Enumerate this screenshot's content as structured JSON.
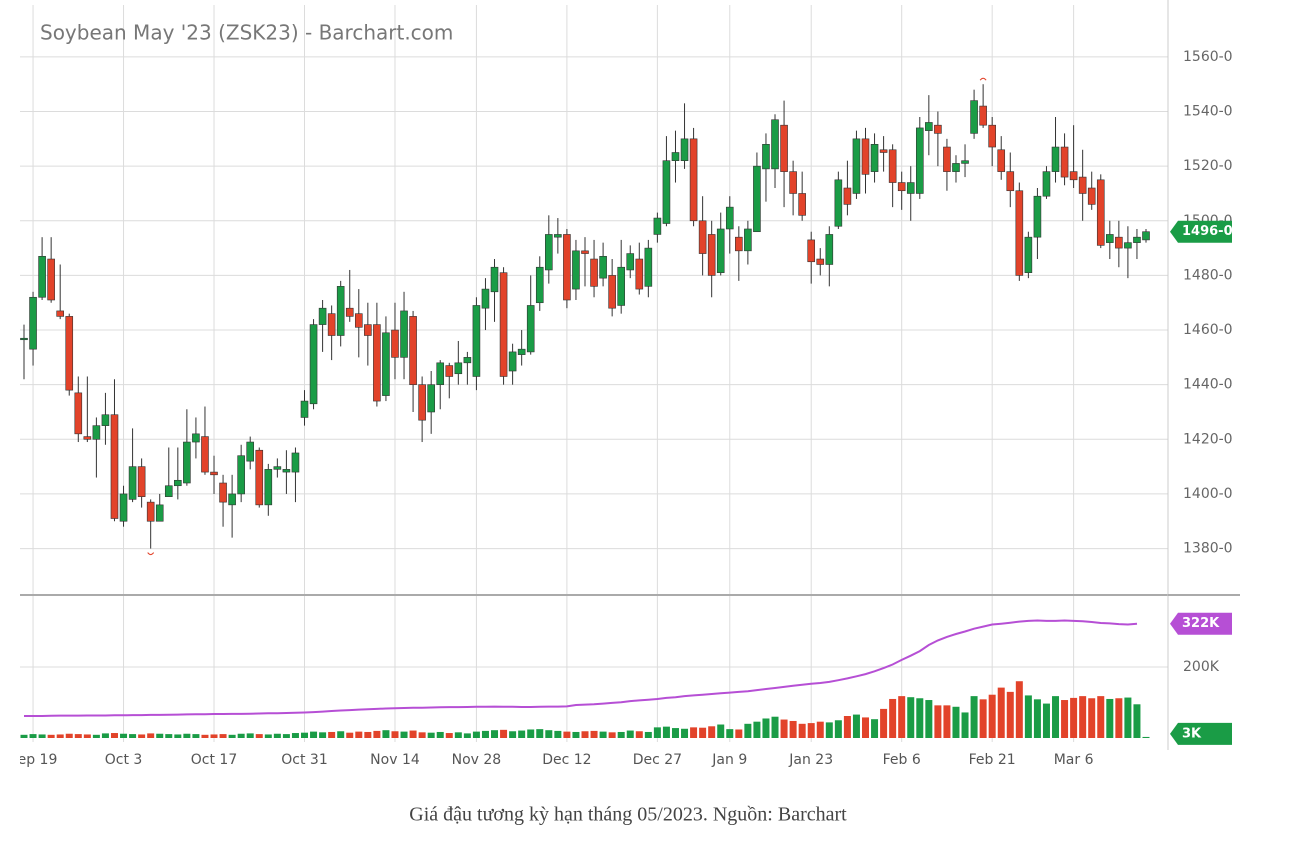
{
  "chart_data": {
    "type": "candlestick",
    "title": "Soybean May '23 (ZSK23) - Barchart.com",
    "caption": "Giá đậu tương kỳ hạn tháng 05/2023. Nguồn: Barchart",
    "colors": {
      "up": "#1a9c46",
      "down": "#e2432a",
      "open_interest": "#b64fd5"
    },
    "grid": true,
    "categories": [
      null,
      "Sep 19",
      null,
      null,
      null,
      null,
      null,
      null,
      null,
      null,
      null,
      "Oct 3",
      null,
      null,
      null,
      null,
      null,
      null,
      null,
      null,
      null,
      "Oct 17",
      null,
      null,
      null,
      null,
      null,
      null,
      null,
      null,
      null,
      "Oct 31",
      null,
      null,
      null,
      null,
      null,
      null,
      null,
      null,
      null,
      "Nov 14",
      null,
      null,
      null,
      null,
      null,
      null,
      null,
      null,
      "Nov 28",
      null,
      null,
      null,
      null,
      null,
      null,
      null,
      null,
      null,
      "Dec 12",
      null,
      null,
      null,
      null,
      null,
      null,
      null,
      null,
      null,
      "Dec 27",
      null,
      null,
      null,
      null,
      null,
      null,
      null,
      "Jan 9",
      null,
      null,
      null,
      null,
      null,
      null,
      null,
      null,
      "Jan 23",
      null,
      null,
      null,
      null,
      null,
      null,
      null,
      null,
      null,
      "Feb 6",
      null,
      null,
      null,
      null,
      null,
      null,
      null,
      null,
      null,
      "Feb 21",
      null,
      null,
      null,
      null,
      null,
      null,
      null,
      null,
      "Mar 6",
      null,
      null,
      null,
      null,
      null,
      null,
      null,
      null
    ],
    "ohlc": [
      [
        1457,
        1462,
        1442,
        1457
      ],
      [
        1453,
        1474,
        1447,
        1472
      ],
      [
        1472,
        1494,
        1471,
        1487
      ],
      [
        1486,
        1494,
        1470,
        1471
      ],
      [
        1467,
        1484,
        1464,
        1465
      ],
      [
        1465,
        1466,
        1436,
        1438
      ],
      [
        1437,
        1443,
        1419,
        1422
      ],
      [
        1421,
        1443,
        1419,
        1420
      ],
      [
        1420,
        1428,
        1406,
        1425
      ],
      [
        1425,
        1437,
        1418,
        1429
      ],
      [
        1429,
        1442,
        1390,
        1391
      ],
      [
        1390,
        1403,
        1388,
        1400
      ],
      [
        1398,
        1424,
        1397,
        1410
      ],
      [
        1410,
        1413,
        1395,
        1399
      ],
      [
        1397,
        1398,
        1380,
        1390
      ],
      [
        1390,
        1400,
        1390,
        1396
      ],
      [
        1399,
        1417,
        1399,
        1403
      ],
      [
        1403,
        1417,
        1398,
        1405
      ],
      [
        1404,
        1431,
        1403,
        1419
      ],
      [
        1419,
        1428,
        1413,
        1422
      ],
      [
        1421,
        1432,
        1407,
        1408
      ],
      [
        1408,
        1414,
        1400,
        1407
      ],
      [
        1404,
        1407,
        1388,
        1397
      ],
      [
        1396,
        1407,
        1384,
        1400
      ],
      [
        1400,
        1418,
        1397,
        1414
      ],
      [
        1412,
        1421,
        1409,
        1419
      ],
      [
        1416,
        1417,
        1395,
        1396
      ],
      [
        1396,
        1411,
        1392,
        1409
      ],
      [
        1409,
        1413,
        1406,
        1410
      ],
      [
        1408,
        1416,
        1400,
        1409
      ],
      [
        1408,
        1417,
        1397,
        1415
      ],
      [
        1428,
        1438,
        1425,
        1434
      ],
      [
        1433,
        1464,
        1431,
        1462
      ],
      [
        1462,
        1471,
        1452,
        1468
      ],
      [
        1466,
        1469,
        1449,
        1458
      ],
      [
        1458,
        1478,
        1454,
        1476
      ],
      [
        1468,
        1482,
        1463,
        1465
      ],
      [
        1466,
        1475,
        1450,
        1461
      ],
      [
        1462,
        1470,
        1447,
        1458
      ],
      [
        1462,
        1470,
        1432,
        1434
      ],
      [
        1436,
        1465,
        1434,
        1459
      ],
      [
        1460,
        1470,
        1442,
        1450
      ],
      [
        1450,
        1474,
        1442,
        1467
      ],
      [
        1465,
        1467,
        1430,
        1440
      ],
      [
        1440,
        1443,
        1419,
        1427
      ],
      [
        1430,
        1445,
        1422,
        1440
      ],
      [
        1440,
        1449,
        1431,
        1448
      ],
      [
        1447,
        1448,
        1435,
        1443
      ],
      [
        1444,
        1456,
        1440,
        1448
      ],
      [
        1448,
        1452,
        1440,
        1450
      ],
      [
        1443,
        1472,
        1438,
        1469
      ],
      [
        1468,
        1479,
        1460,
        1475
      ],
      [
        1474,
        1486,
        1463,
        1483
      ],
      [
        1481,
        1483,
        1440,
        1443
      ],
      [
        1445,
        1455,
        1440,
        1452
      ],
      [
        1451,
        1460,
        1447,
        1453
      ],
      [
        1452,
        1480,
        1451,
        1469
      ],
      [
        1470,
        1487,
        1467,
        1483
      ],
      [
        1482,
        1502,
        1477,
        1495
      ],
      [
        1494,
        1501,
        1488,
        1495
      ],
      [
        1495,
        1497,
        1468,
        1471
      ],
      [
        1475,
        1493,
        1471,
        1489
      ],
      [
        1489,
        1494,
        1476,
        1488
      ],
      [
        1486,
        1493,
        1472,
        1476
      ],
      [
        1479,
        1492,
        1476,
        1487
      ],
      [
        1480,
        1486,
        1465,
        1468
      ],
      [
        1469,
        1493,
        1466,
        1483
      ],
      [
        1482,
        1491,
        1479,
        1488
      ],
      [
        1486,
        1492,
        1473,
        1475
      ],
      [
        1476,
        1493,
        1472,
        1490
      ],
      [
        1495,
        1503,
        1492,
        1501
      ],
      [
        1499,
        1531,
        1498,
        1522
      ],
      [
        1522,
        1533,
        1514,
        1525
      ],
      [
        1522,
        1543,
        1519,
        1530
      ],
      [
        1530,
        1534,
        1498,
        1500
      ],
      [
        1500,
        1509,
        1480,
        1488
      ],
      [
        1495,
        1500,
        1472,
        1480
      ],
      [
        1481,
        1503,
        1480,
        1497
      ],
      [
        1497,
        1509,
        1488,
        1505
      ],
      [
        1494,
        1498,
        1478,
        1489
      ],
      [
        1489,
        1500,
        1484,
        1497
      ],
      [
        1496,
        1525,
        1496,
        1520
      ],
      [
        1519,
        1532,
        1507,
        1528
      ],
      [
        1519,
        1539,
        1512,
        1537
      ],
      [
        1535,
        1544,
        1505,
        1518
      ],
      [
        1518,
        1522,
        1502,
        1510
      ],
      [
        1510,
        1518,
        1500,
        1502
      ],
      [
        1493,
        1496,
        1477,
        1485
      ],
      [
        1486,
        1490,
        1480,
        1484
      ],
      [
        1484,
        1498,
        1476,
        1495
      ],
      [
        1498,
        1518,
        1497,
        1515
      ],
      [
        1512,
        1522,
        1502,
        1506
      ],
      [
        1510,
        1533,
        1508,
        1530
      ],
      [
        1530,
        1534,
        1510,
        1517
      ],
      [
        1518,
        1532,
        1514,
        1528
      ],
      [
        1526,
        1531,
        1518,
        1525
      ],
      [
        1526,
        1528,
        1505,
        1514
      ],
      [
        1514,
        1518,
        1504,
        1511
      ],
      [
        1510,
        1520,
        1500,
        1514
      ],
      [
        1510,
        1538,
        1508,
        1534
      ],
      [
        1533,
        1546,
        1524,
        1536
      ],
      [
        1535,
        1540,
        1520,
        1532
      ],
      [
        1527,
        1530,
        1511,
        1518
      ],
      [
        1518,
        1524,
        1514,
        1521
      ],
      [
        1521,
        1528,
        1516,
        1522
      ],
      [
        1532,
        1548,
        1530,
        1544
      ],
      [
        1542,
        1550,
        1534,
        1535
      ],
      [
        1535,
        1538,
        1520,
        1527
      ],
      [
        1526,
        1531,
        1515,
        1518
      ],
      [
        1518,
        1525,
        1505,
        1511
      ],
      [
        1511,
        1514,
        1478,
        1480
      ],
      [
        1481,
        1496,
        1479,
        1494
      ],
      [
        1494,
        1512,
        1486,
        1509
      ],
      [
        1509,
        1520,
        1508,
        1518
      ],
      [
        1518,
        1538,
        1514,
        1527
      ],
      [
        1527,
        1532,
        1513,
        1516
      ],
      [
        1518,
        1535,
        1512,
        1515
      ],
      [
        1516,
        1526,
        1500,
        1510
      ],
      [
        1512,
        1518,
        1504,
        1506
      ],
      [
        1515,
        1517,
        1490,
        1491
      ],
      [
        1492,
        1500,
        1486,
        1495
      ],
      [
        1494,
        1500,
        1483,
        1490
      ],
      [
        1490,
        1498,
        1479,
        1492
      ],
      [
        1492,
        1497,
        1486,
        1494
      ],
      [
        1493,
        1497,
        1492,
        1496
      ]
    ],
    "ylim": [
      1363,
      1579
    ],
    "yticks": [
      {
        "value": 1380,
        "label": "1380-0"
      },
      {
        "value": 1400,
        "label": "1400-0"
      },
      {
        "value": 1420,
        "label": "1420-0"
      },
      {
        "value": 1440,
        "label": "1440-0"
      },
      {
        "value": 1460,
        "label": "1460-0"
      },
      {
        "value": 1480,
        "label": "1480-0"
      },
      {
        "value": 1500,
        "label": "1500-0"
      },
      {
        "value": 1520,
        "label": "1520-0"
      },
      {
        "value": 1540,
        "label": "1540-0"
      },
      {
        "value": 1560,
        "label": "1560-0"
      }
    ],
    "last_close": {
      "value": 1496,
      "label": "1496-0"
    },
    "volume": [
      9000,
      11000,
      10000,
      9000,
      10000,
      12000,
      11000,
      10000,
      9000,
      13000,
      14000,
      12000,
      11000,
      10000,
      13000,
      12000,
      11000,
      10000,
      12000,
      11000,
      9000,
      10000,
      11000,
      9000,
      12000,
      13000,
      11000,
      10000,
      12000,
      11000,
      14000,
      15000,
      18000,
      16000,
      17000,
      19000,
      15000,
      18000,
      17000,
      20000,
      22000,
      19000,
      18000,
      21000,
      16000,
      15000,
      17000,
      14000,
      16000,
      13000,
      18000,
      20000,
      22000,
      23000,
      19000,
      21000,
      24000,
      25000,
      22000,
      20000,
      18000,
      17000,
      19000,
      20000,
      18000,
      16000,
      17000,
      21000,
      19000,
      17000,
      30000,
      32000,
      28000,
      26000,
      30000,
      29000,
      33000,
      38000,
      25000,
      24000,
      40000,
      46000,
      55000,
      60000,
      52000,
      48000,
      40000,
      42000,
      46000,
      44000,
      50000,
      62000,
      66000,
      58000,
      53000,
      82000,
      110000,
      118000,
      115000,
      112000,
      107000,
      92000,
      92000,
      88000,
      72000,
      118000,
      109000,
      122000,
      142000,
      130000,
      160000,
      120000,
      109000,
      97000,
      118000,
      107000,
      113000,
      118000,
      112000,
      118000,
      110000,
      112000,
      114000,
      95000,
      3000
    ],
    "open_interest": [
      62000,
      62000,
      62000,
      62500,
      63000,
      63000,
      63000,
      63500,
      63500,
      63500,
      64000,
      64000,
      64500,
      64500,
      65000,
      65000,
      65500,
      66000,
      66500,
      67000,
      67000,
      67500,
      67500,
      68000,
      68000,
      68500,
      69000,
      69500,
      70000,
      70500,
      71000,
      72000,
      73000,
      74500,
      76000,
      77500,
      78500,
      80000,
      81000,
      82000,
      83000,
      84000,
      84500,
      85000,
      85500,
      86000,
      86500,
      87000,
      87000,
      87500,
      88000,
      88000,
      88500,
      88000,
      88000,
      87500,
      87500,
      88000,
      88500,
      88500,
      89000,
      93000,
      94000,
      95000,
      97000,
      99000,
      101000,
      104000,
      106000,
      108000,
      110000,
      113000,
      115000,
      118000,
      120000,
      122000,
      124000,
      126000,
      128000,
      130000,
      132000,
      135000,
      138000,
      141000,
      144000,
      147000,
      150000,
      153000,
      155000,
      158000,
      163000,
      168000,
      174000,
      180000,
      188000,
      197000,
      207000,
      220000,
      232000,
      245000,
      262000,
      275000,
      285000,
      293000,
      300000,
      308000,
      314000,
      320000,
      322000,
      325000,
      328000,
      330000,
      331000,
      330000,
      330000,
      331000,
      330000,
      329000,
      327000,
      324000,
      323000,
      321000,
      320000,
      322000,
      null
    ],
    "vlim": [
      0,
      403000
    ],
    "vticks": [
      {
        "value": 200000,
        "label": "200K"
      }
    ],
    "last_volume": {
      "value": 3000,
      "label": "3K"
    },
    "last_open_interest": {
      "value": 322000,
      "label": "322K"
    }
  }
}
